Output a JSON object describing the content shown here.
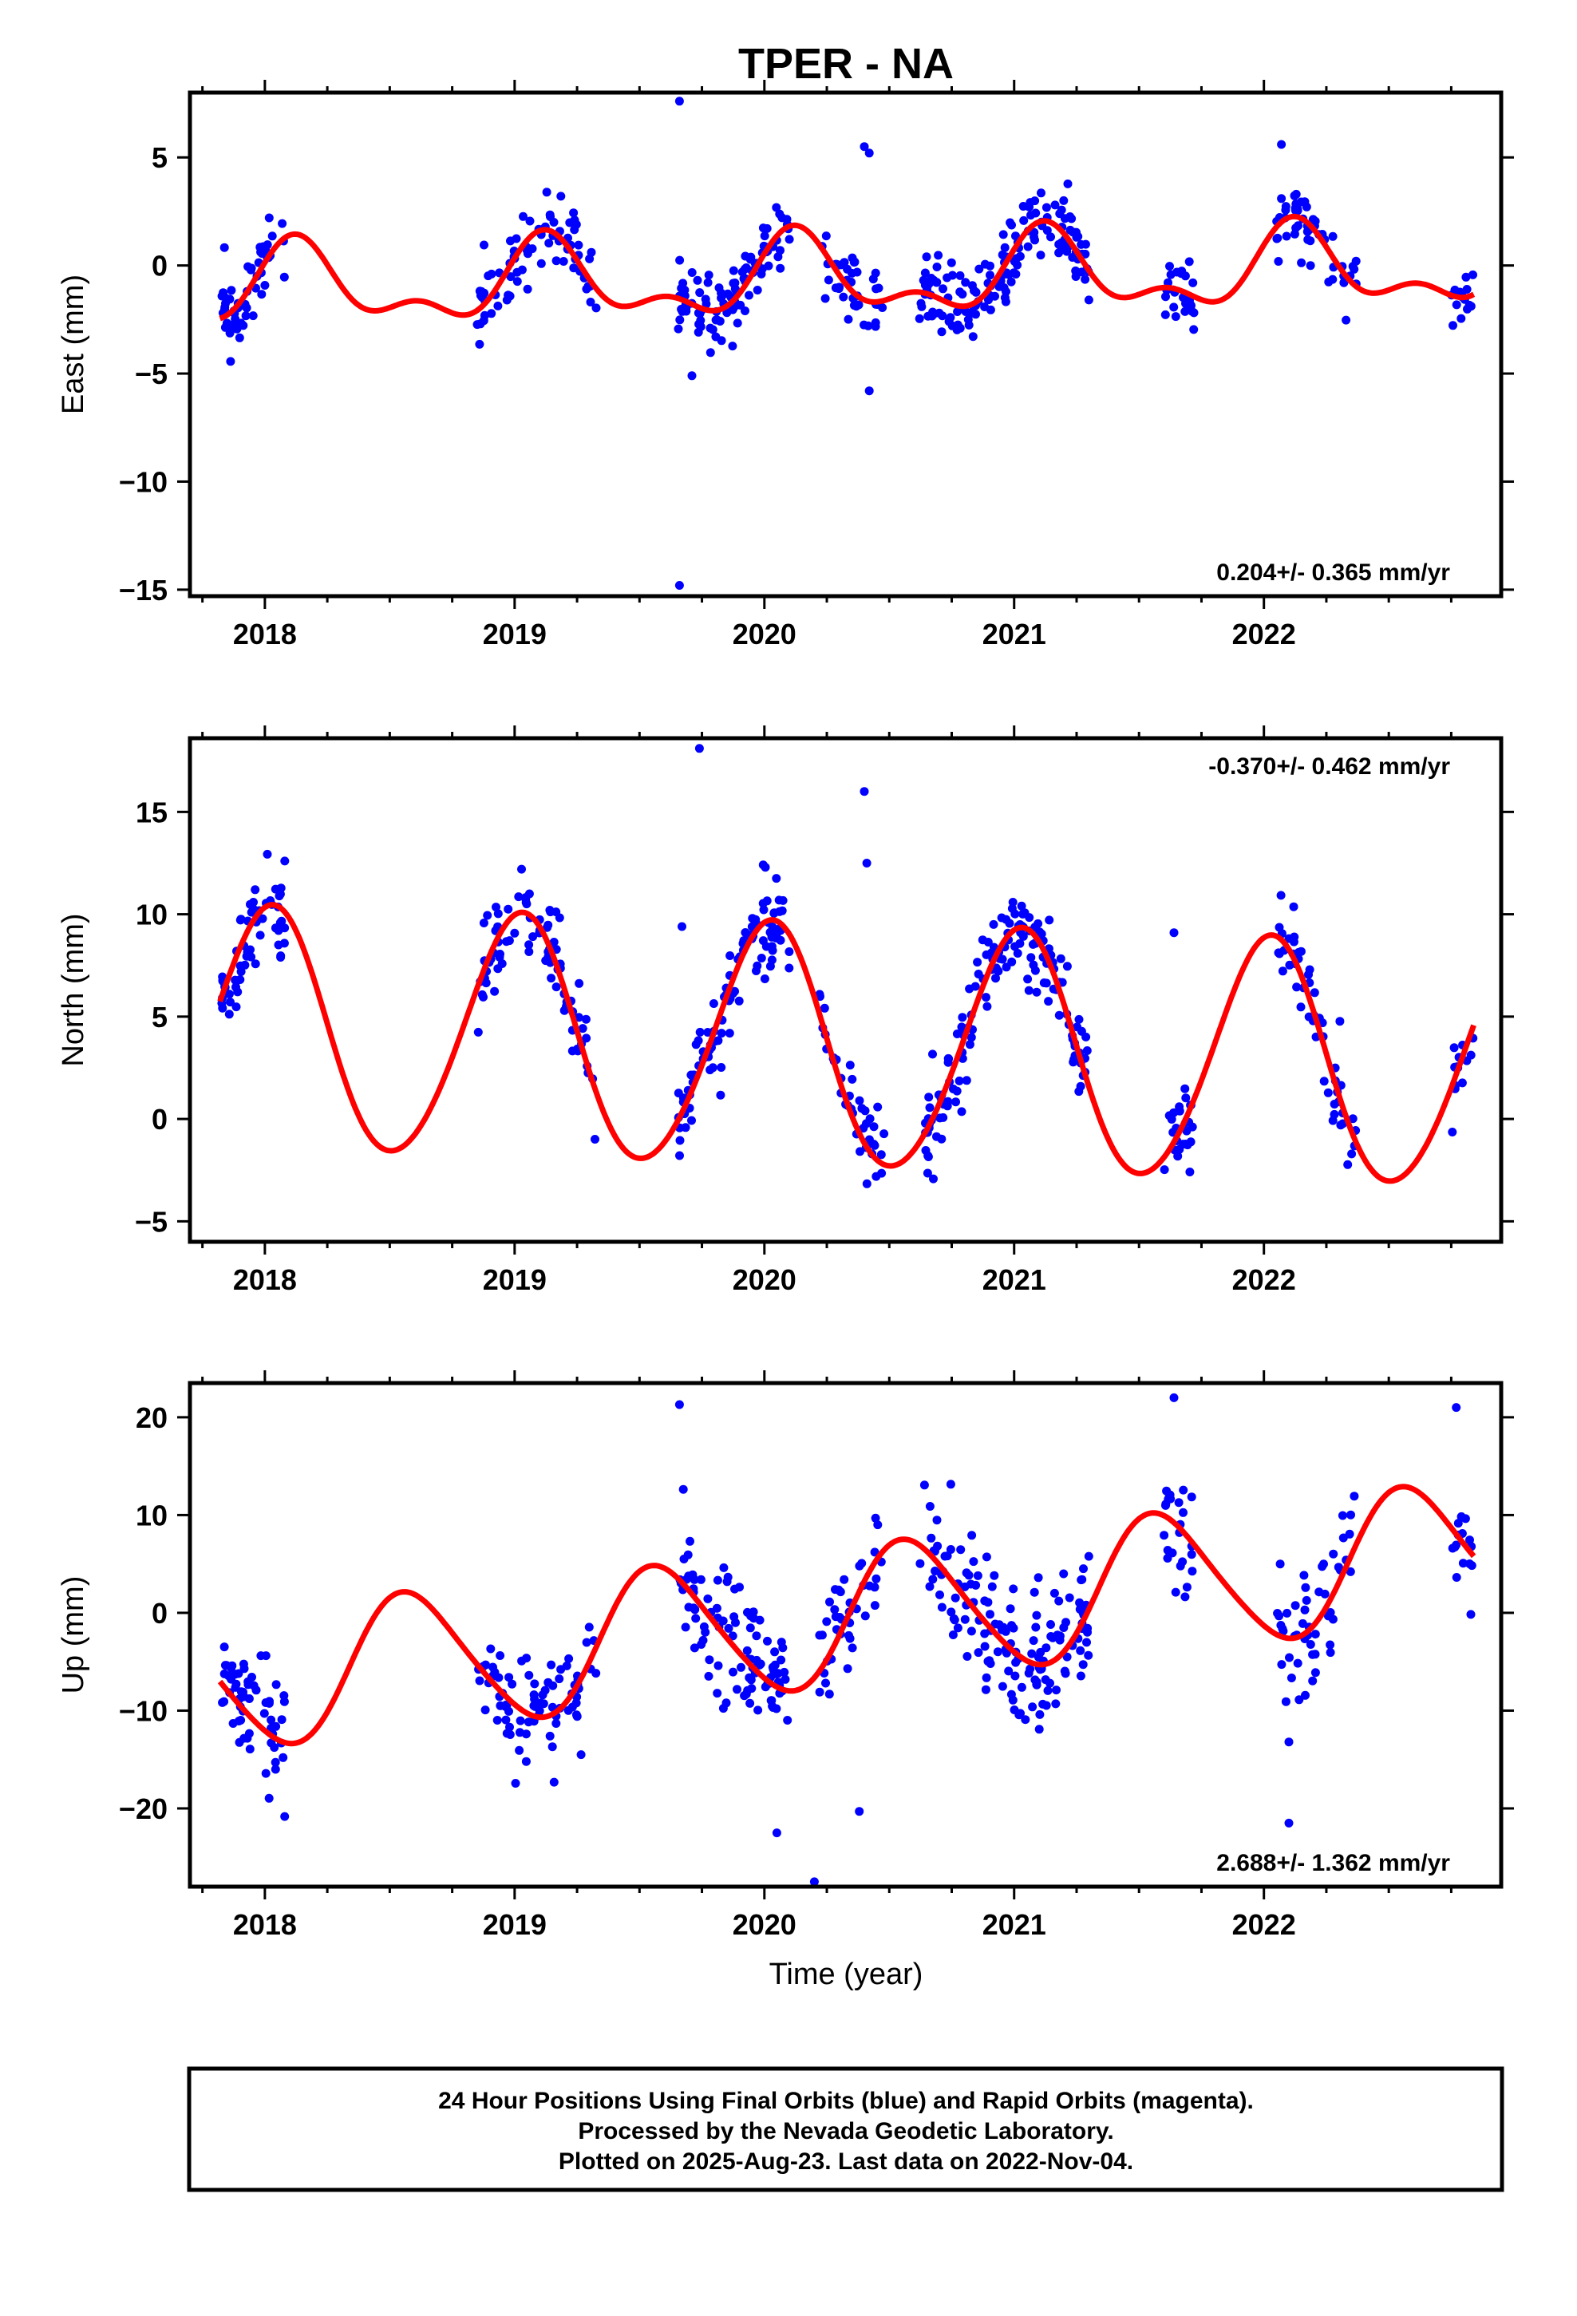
{
  "title": "TPER - NA",
  "x_axis_label": "Time (year)",
  "caption_lines": [
    "24 Hour Positions Using Final Orbits (blue) and Rapid Orbits (magenta).",
    "Processed by the Nevada Geodetic Laboratory.",
    "Plotted on 2025-Aug-23. Last data on 2022-Nov-04."
  ],
  "colors": {
    "final_orbits": "#0000ff",
    "rapid_orbits": "#ff00ff",
    "model_fit": "#ff0000",
    "axes": "#000000"
  },
  "chart_data": [
    {
      "type": "scatter",
      "component": "East",
      "ylabel": "East (mm)",
      "xlim": [
        2017.7,
        2022.95
      ],
      "ylim": [
        -15.3,
        8.0
      ],
      "xticks": [
        2018,
        2019,
        2020,
        2021,
        2022
      ],
      "yticks": [
        5,
        0,
        -5,
        -10,
        -15
      ],
      "ytick_labels": [
        "5",
        "0",
        "−5",
        "−10",
        "−15"
      ],
      "rate_label": "0.204+/- 0.365 mm/yr",
      "rate_position": "bottom-right",
      "model": {
        "offset": -0.6,
        "trend": 0.204,
        "t0": 2020.3,
        "terms": [
          {
            "amp": 1.6,
            "period": 1.0,
            "phase": 0.12
          },
          {
            "amp": 0.9,
            "period": 0.5,
            "phase": 0.02
          }
        ]
      },
      "segments": [
        {
          "start": 2017.82,
          "end": 2018.08,
          "n": 60
        },
        {
          "start": 2018.85,
          "end": 2019.33,
          "n": 80
        },
        {
          "start": 2019.65,
          "end": 2020.1,
          "n": 100
        },
        {
          "start": 2020.22,
          "end": 2020.48,
          "n": 40
        },
        {
          "start": 2020.62,
          "end": 2021.3,
          "n": 150
        },
        {
          "start": 2021.6,
          "end": 2021.72,
          "n": 25
        },
        {
          "start": 2022.05,
          "end": 2022.37,
          "n": 50
        },
        {
          "start": 2022.75,
          "end": 2022.84,
          "n": 15
        }
      ],
      "scatter_sd": 0.9,
      "seed": 11,
      "outliers": [
        [
          2019.66,
          7.6
        ],
        [
          2019.66,
          -14.8
        ],
        [
          2019.71,
          -5.1
        ],
        [
          2020.4,
          5.5
        ],
        [
          2020.42,
          5.2
        ],
        [
          2020.42,
          -5.8
        ],
        [
          2022.07,
          5.6
        ]
      ]
    },
    {
      "type": "scatter",
      "component": "North",
      "ylabel": "North (mm)",
      "xlim": [
        2017.7,
        2022.95
      ],
      "ylim": [
        -6.0,
        18.6
      ],
      "xticks": [
        2018,
        2019,
        2020,
        2021,
        2022
      ],
      "yticks": [
        15,
        10,
        5,
        0,
        -5
      ],
      "ytick_labels": [
        "15",
        "10",
        "5",
        "0",
        "−5"
      ],
      "rate_label": "-0.370+/- 0.462 mm/yr",
      "rate_position": "top-right",
      "model": {
        "offset": 3.4,
        "trend": -0.37,
        "t0": 2020.3,
        "terms": [
          {
            "amp": 5.9,
            "period": 1.0,
            "phase": 0.23
          },
          {
            "amp": 0.4,
            "period": 0.5,
            "phase": 0.1
          }
        ]
      },
      "segments": [
        {
          "start": 2017.82,
          "end": 2018.08,
          "n": 60
        },
        {
          "start": 2018.85,
          "end": 2019.33,
          "n": 80
        },
        {
          "start": 2019.65,
          "end": 2020.1,
          "n": 100
        },
        {
          "start": 2020.22,
          "end": 2020.48,
          "n": 40
        },
        {
          "start": 2020.62,
          "end": 2021.3,
          "n": 150
        },
        {
          "start": 2021.6,
          "end": 2021.72,
          "n": 25
        },
        {
          "start": 2022.05,
          "end": 2022.37,
          "n": 50
        },
        {
          "start": 2022.75,
          "end": 2022.84,
          "n": 15
        }
      ],
      "scatter_sd": 1.1,
      "seed": 23,
      "outliers": [
        [
          2019.74,
          18.1
        ],
        [
          2020.4,
          16.0
        ],
        [
          2020.41,
          12.5
        ],
        [
          2019.67,
          9.4
        ],
        [
          2021.64,
          9.1
        ]
      ]
    },
    {
      "type": "scatter",
      "component": "Up",
      "ylabel": "Up (mm)",
      "xlim": [
        2017.7,
        2022.95
      ],
      "ylim": [
        -28.0,
        23.5
      ],
      "xticks": [
        2018,
        2019,
        2020,
        2021,
        2022
      ],
      "yticks": [
        20,
        10,
        0,
        -10,
        -20
      ],
      "ytick_labels": [
        "20",
        "10",
        "0",
        "−10",
        "−20"
      ],
      "rate_label": "2.688+/- 1.362 mm/yr",
      "rate_position": "bottom-right",
      "model": {
        "offset": -0.5,
        "trend": 2.688,
        "t0": 2020.3,
        "terms": [
          {
            "amp": 7.0,
            "period": 1.0,
            "phase": 0.67
          },
          {
            "amp": 0.8,
            "period": 0.5,
            "phase": 0.3
          }
        ]
      },
      "segments": [
        {
          "start": 2017.82,
          "end": 2018.08,
          "n": 60
        },
        {
          "start": 2018.85,
          "end": 2019.33,
          "n": 80
        },
        {
          "start": 2019.65,
          "end": 2020.1,
          "n": 100
        },
        {
          "start": 2020.22,
          "end": 2020.48,
          "n": 40
        },
        {
          "start": 2020.62,
          "end": 2021.3,
          "n": 150
        },
        {
          "start": 2021.6,
          "end": 2021.72,
          "n": 25
        },
        {
          "start": 2022.05,
          "end": 2022.37,
          "n": 50
        },
        {
          "start": 2022.75,
          "end": 2022.84,
          "n": 15
        }
      ],
      "scatter_sd": 3.2,
      "seed": 37,
      "outliers": [
        [
          2019.66,
          21.3
        ],
        [
          2020.05,
          -22.5
        ],
        [
          2020.2,
          -27.5
        ],
        [
          2020.38,
          -20.3
        ],
        [
          2022.1,
          -21.5
        ],
        [
          2022.1,
          -13.2
        ],
        [
          2021.64,
          22.0
        ],
        [
          2022.77,
          21.0
        ]
      ]
    }
  ]
}
